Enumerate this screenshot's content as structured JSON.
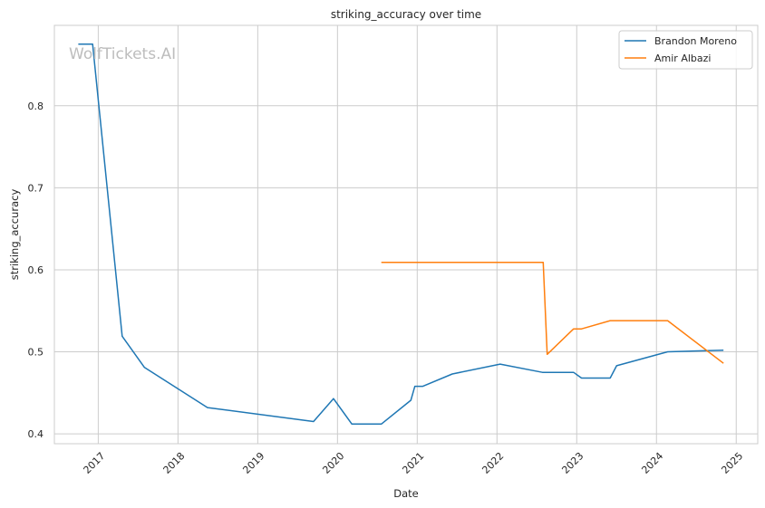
{
  "chart_data": {
    "type": "line",
    "title": "striking_accuracy over time",
    "xlabel": "Date",
    "ylabel": "striking_accuracy",
    "watermark": "WolfTickets.AI",
    "grid": true,
    "legend_position": "top-right",
    "x_axis": {
      "range": [
        2016.45,
        2025.27
      ],
      "ticks": [
        "2017",
        "2018",
        "2019",
        "2020",
        "2021",
        "2022",
        "2023",
        "2024",
        "2025"
      ]
    },
    "y_axis": {
      "range": [
        0.388,
        0.898
      ],
      "ticks": [
        "0.4",
        "0.5",
        "0.6",
        "0.7",
        "0.8"
      ]
    },
    "series": [
      {
        "name": "Brandon Moreno",
        "color": "#1f77b4",
        "points": [
          [
            2016.75,
            0.875
          ],
          [
            2016.93,
            0.875
          ],
          [
            2017.3,
            0.519
          ],
          [
            2017.58,
            0.481
          ],
          [
            2018.37,
            0.432
          ],
          [
            2019.7,
            0.415
          ],
          [
            2019.95,
            0.443
          ],
          [
            2020.18,
            0.412
          ],
          [
            2020.55,
            0.412
          ],
          [
            2020.92,
            0.441
          ],
          [
            2020.97,
            0.458
          ],
          [
            2021.07,
            0.458
          ],
          [
            2021.44,
            0.473
          ],
          [
            2022.04,
            0.485
          ],
          [
            2022.57,
            0.475
          ],
          [
            2022.96,
            0.475
          ],
          [
            2023.06,
            0.468
          ],
          [
            2023.42,
            0.468
          ],
          [
            2023.5,
            0.483
          ],
          [
            2024.14,
            0.5
          ],
          [
            2024.84,
            0.502
          ]
        ]
      },
      {
        "name": "Amir Albazi",
        "color": "#ff7f0e",
        "points": [
          [
            2020.55,
            0.609
          ],
          [
            2022.58,
            0.609
          ],
          [
            2022.63,
            0.497
          ],
          [
            2022.96,
            0.528
          ],
          [
            2023.06,
            0.528
          ],
          [
            2023.42,
            0.538
          ],
          [
            2024.14,
            0.538
          ],
          [
            2024.84,
            0.486
          ]
        ]
      }
    ]
  }
}
